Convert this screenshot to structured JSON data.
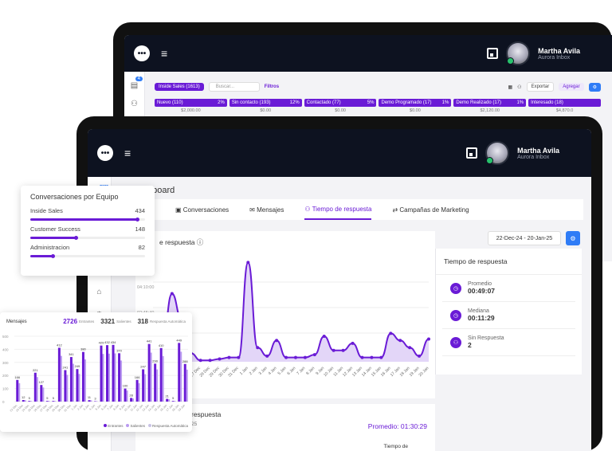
{
  "back": {
    "user": {
      "name": "Martha Avila",
      "company": "Aurora Inbox"
    },
    "sidebar_badge": "4",
    "toolbar": {
      "pipeline": "Inside Sales (1613)",
      "search_placeholder": "Buscar...",
      "filters": "Filtros",
      "export": "Exportar",
      "add": "Agregar"
    },
    "stages": [
      {
        "name": "Nuevo (110)",
        "pct": "2%",
        "amount": "$2,000.00"
      },
      {
        "name": "Sin contacto (193)",
        "pct": "12%",
        "amount": "$0.00"
      },
      {
        "name": "Contactado (77)",
        "pct": "5%",
        "amount": "$0.00"
      },
      {
        "name": "Demo Programado (17)",
        "pct": "1%",
        "amount": "$0.00"
      },
      {
        "name": "Demo Realizado (17)",
        "pct": "1%",
        "amount": "$2,120.00"
      },
      {
        "name": "Interesado (18)",
        "pct": "",
        "amount": "$4,870.0"
      }
    ]
  },
  "front": {
    "user": {
      "name": "Martha Avila",
      "company": "Aurora Inbox"
    },
    "sidebar_badge": "92",
    "page_title": "Dashboard",
    "tabs": [
      "Conversaciones",
      "Mensajes",
      "Tiempo de respuesta",
      "Campañas de Marketing"
    ],
    "active_tab": "Tiempo de respuesta",
    "date_range": "22-Dec-24 - 20-Jan-25",
    "chart_title": "e respuesta",
    "right_card": {
      "title": "Tiempo de respuesta",
      "metrics": [
        {
          "label": "Promedio",
          "value": "00:49:07"
        },
        {
          "label": "Mediana",
          "value": "00:11:29"
        },
        {
          "label": "Sin Respuesta",
          "value": "2"
        }
      ]
    },
    "bottom": {
      "title": "respuesta",
      "subtitle": "25",
      "average": "Promedio: 01:30:29",
      "column": "Tiempo de"
    }
  },
  "chart_data": [
    {
      "type": "area",
      "title": "Tiempo de respuesta",
      "y_ticks": [
        "04:10:00",
        "02:45:40"
      ],
      "categories": [
        "22 Dec",
        "23 Dec",
        "24 Dec",
        "25 Dec",
        "26 Dec",
        "27 Dec",
        "28 Dec",
        "29 Dec",
        "30 Dec",
        "31 Dec",
        "1 Jan",
        "2 Jan",
        "3 Jan",
        "4 Jan",
        "5 Jan",
        "6 Jan",
        "7 Jan",
        "8 Jan",
        "9 Jan",
        "10 Jan",
        "11 Jan",
        "12 Jan",
        "13 Jan",
        "14 Jan",
        "15 Jan",
        "16 Jan",
        "17 Jan",
        "18 Jan",
        "19 Jan",
        "20 Jan"
      ],
      "values": [
        0.5,
        1.4,
        4.8,
        3.0,
        0.6,
        0.1,
        0.1,
        0.2,
        0.3,
        0.3,
        7.0,
        1.0,
        0.4,
        1.5,
        0.3,
        0.3,
        0.3,
        0.5,
        1.8,
        0.8,
        0.8,
        1.3,
        0.3,
        0.3,
        0.3,
        2.0,
        1.5,
        1.0,
        0.4,
        1.6
      ]
    },
    {
      "type": "bar",
      "title": "Mensajes",
      "totals": {
        "entrantes": "2726",
        "salientes": "3321",
        "automaticos": "318"
      },
      "labels": {
        "entrantes": "Entrantes",
        "salientes": "Salientes",
        "automaticos": "Respuesta Automática"
      },
      "y_ticks": [
        "500",
        "400",
        "300",
        "200",
        "100",
        "0"
      ],
      "ylim": [
        0,
        500
      ],
      "values": [
        166,
        12,
        5,
        221,
        127,
        5,
        5,
        412,
        241,
        341,
        249,
        380,
        11,
        3,
        429,
        432,
        434,
        370,
        100,
        28,
        166,
        247,
        441,
        290,
        410,
        21,
        5,
        449,
        288
      ],
      "data_labels": [
        "166",
        "12",
        "5",
        "221",
        "127",
        "5",
        "5",
        "412",
        "241",
        "341",
        "249",
        "380",
        "11",
        "3",
        "429",
        "432",
        "434",
        "370",
        "100",
        "28",
        "166",
        "247",
        "441",
        "290",
        "410",
        "21",
        "5",
        "449",
        "288"
      ]
    }
  ],
  "team_card": {
    "title": "Conversaciones por Equipo",
    "teams": [
      {
        "name": "Inside Sales",
        "value": "434",
        "fraction": 0.94
      },
      {
        "name": "Customer Success",
        "value": "148",
        "fraction": 0.4
      },
      {
        "name": "Administracion",
        "value": "82",
        "fraction": 0.2
      }
    ]
  },
  "colors": {
    "accent": "#6a1bd6",
    "dark": "#0d1220",
    "blue": "#2f7cf6",
    "online": "#27c26c"
  }
}
